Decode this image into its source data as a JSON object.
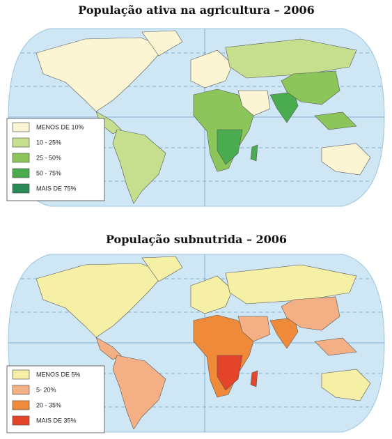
{
  "maps": [
    {
      "title": "População ativa na agricultura – 2006",
      "legend": [
        {
          "label": "MENOS DE 10%",
          "color": "#fbf5d4"
        },
        {
          "label": "10 - 25%",
          "color": "#c6df8e"
        },
        {
          "label": "25 - 50%",
          "color": "#8cc65a"
        },
        {
          "label": "50 - 75%",
          "color": "#4aab4f"
        },
        {
          "label": "MAIS DE 75%",
          "color": "#2a8a55"
        }
      ]
    },
    {
      "title": "População subnutrida – 2006",
      "legend": [
        {
          "label": "MENOS DE 5%",
          "color": "#f6efa6"
        },
        {
          "label": "5- 20%",
          "color": "#f4b084"
        },
        {
          "label": "20 - 35%",
          "color": "#ef8a3a"
        },
        {
          "label": "MAIS DE 35%",
          "color": "#e4442a"
        }
      ]
    }
  ]
}
